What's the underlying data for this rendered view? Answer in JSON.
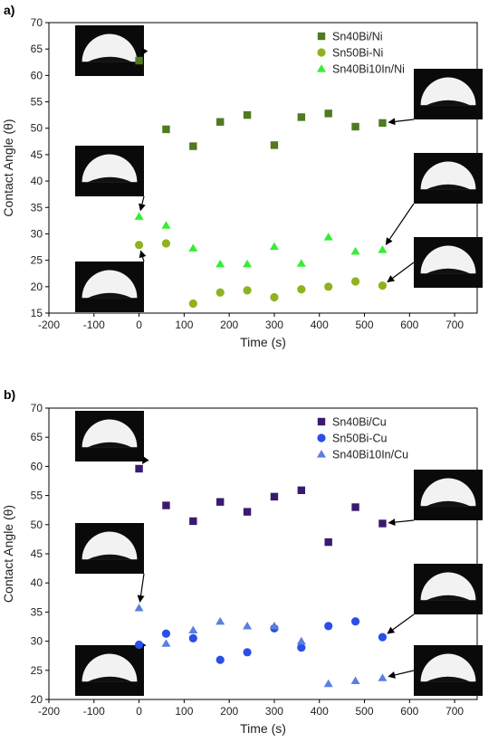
{
  "chart_data": [
    {
      "type": "scatter",
      "panel_label": "a)",
      "xlabel": "Time (s)",
      "ylabel": "Contact Angle (θ)",
      "xlim": [
        -200,
        750
      ],
      "ylim": [
        15,
        70
      ],
      "xticks": [
        -200,
        -100,
        0,
        100,
        200,
        300,
        400,
        500,
        600,
        700
      ],
      "yticks": [
        15,
        20,
        25,
        30,
        35,
        40,
        45,
        50,
        55,
        60,
        65,
        70
      ],
      "legend_position": "top-right",
      "grid": false,
      "series": [
        {
          "name": "Sn40Bi/Ni",
          "marker": "square",
          "color": "#4f7a1f",
          "x": [
            0,
            60,
            120,
            180,
            240,
            300,
            360,
            420,
            480,
            540
          ],
          "y": [
            62.8,
            49.8,
            46.6,
            51.2,
            52.5,
            46.8,
            52.1,
            52.8,
            50.3,
            51.0
          ]
        },
        {
          "name": "Sn50Bi-Ni",
          "marker": "circle",
          "color": "#8fb21f",
          "x": [
            0,
            60,
            120,
            180,
            240,
            300,
            360,
            420,
            480,
            540
          ],
          "y": [
            27.9,
            28.2,
            16.8,
            18.9,
            19.3,
            18.0,
            19.5,
            20.0,
            21.0,
            20.2
          ]
        },
        {
          "name": "Sn40Bi10In/Ni",
          "marker": "triangle",
          "color": "#33ee33",
          "x": [
            0,
            60,
            120,
            180,
            240,
            300,
            360,
            420,
            480,
            540
          ],
          "y": [
            33.3,
            31.6,
            27.3,
            24.3,
            24.3,
            27.6,
            24.4,
            29.4,
            26.7,
            27.0
          ]
        }
      ],
      "insets": [
        {
          "name": "droplet-inset-sn40bi-start",
          "points_to": [
            0,
            62.8
          ]
        },
        {
          "name": "droplet-inset-sn40bi10in-start",
          "points_to": [
            0,
            33.3
          ]
        },
        {
          "name": "droplet-inset-sn50bi-start",
          "points_to": [
            0,
            27.9
          ]
        },
        {
          "name": "droplet-inset-sn40bi-end",
          "points_to": [
            540,
            51.0
          ]
        },
        {
          "name": "droplet-inset-sn40bi10in-end",
          "points_to": [
            540,
            27.0
          ]
        },
        {
          "name": "droplet-inset-sn50bi-end",
          "points_to": [
            540,
            20.2
          ]
        }
      ]
    },
    {
      "type": "scatter",
      "panel_label": "b)",
      "xlabel": "Time (s)",
      "ylabel": "Contact Angle (θ)",
      "xlim": [
        -200,
        750
      ],
      "ylim": [
        20,
        70
      ],
      "xticks": [
        -200,
        -100,
        0,
        100,
        200,
        300,
        400,
        500,
        600,
        700
      ],
      "yticks": [
        20,
        25,
        30,
        35,
        40,
        45,
        50,
        55,
        60,
        65,
        70
      ],
      "legend_position": "top-right",
      "grid": false,
      "series": [
        {
          "name": "Sn40Bi/Cu",
          "marker": "square",
          "color": "#3a1a6e",
          "x": [
            0,
            60,
            120,
            180,
            240,
            300,
            360,
            420,
            480,
            540
          ],
          "y": [
            59.6,
            53.3,
            50.6,
            53.9,
            52.2,
            54.8,
            55.9,
            47.0,
            53.0,
            50.2
          ]
        },
        {
          "name": "Sn50Bi-Cu",
          "marker": "circle",
          "color": "#2a4ee8",
          "x": [
            0,
            60,
            120,
            180,
            240,
            300,
            360,
            420,
            480,
            540
          ],
          "y": [
            29.4,
            31.3,
            30.5,
            26.8,
            28.1,
            32.2,
            28.9,
            32.6,
            33.4,
            30.7
          ]
        },
        {
          "name": "Sn40Bi10In/Cu",
          "marker": "triangle",
          "color": "#5b7fe0",
          "x": [
            0,
            60,
            120,
            180,
            240,
            300,
            360,
            420,
            480,
            540
          ],
          "y": [
            35.7,
            29.6,
            31.9,
            33.4,
            32.6,
            32.6,
            30.0,
            22.7,
            23.2,
            23.7
          ]
        }
      ],
      "insets": [
        {
          "name": "droplet-inset-sn40bi-cu-start",
          "points_to": [
            0,
            59.6
          ]
        },
        {
          "name": "droplet-inset-sn40bi10in-cu-start",
          "points_to": [
            0,
            35.7
          ]
        },
        {
          "name": "droplet-inset-sn50bi-cu-start",
          "points_to": [
            0,
            29.4
          ]
        },
        {
          "name": "droplet-inset-sn40bi-cu-end",
          "points_to": [
            540,
            50.2
          ]
        },
        {
          "name": "droplet-inset-sn50bi-cu-end",
          "points_to": [
            540,
            30.7
          ]
        },
        {
          "name": "droplet-inset-sn40bi10in-cu-end",
          "points_to": [
            540,
            23.7
          ]
        }
      ]
    }
  ]
}
